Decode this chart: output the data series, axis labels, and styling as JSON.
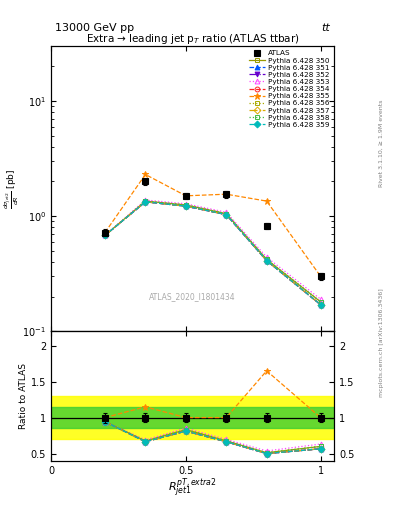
{
  "title_top": "13000 GeV pp",
  "title_top_right": "tt",
  "plot_title": "Extra → leading jet p$_T$ ratio (ATLAS ttbar)",
  "xlabel": "$R_{jet1}^{pT,extra2}$",
  "ylabel_main": "$\\frac{d\\sigma_{jet2}}{dR}$ [pb]",
  "ylabel_ratio": "Ratio to ATLAS",
  "watermark": "ATLAS_2020_I1801434",
  "right_label": "Rivet 3.1.10, ≥ 1.9M events",
  "right_label2": "mcplots.cern.ch [arXiv:1306.3436]",
  "xdata": [
    0.2,
    0.35,
    0.5,
    0.65,
    0.8,
    1.0
  ],
  "atlas_y": [
    0.72,
    2.0,
    1.5,
    1.55,
    0.82,
    0.3
  ],
  "atlas_yerr": [
    0.05,
    0.12,
    0.1,
    0.1,
    0.05,
    0.02
  ],
  "series": [
    {
      "label": "Pythia 6.428 350",
      "color": "#999900",
      "linestyle": "-",
      "marker": "s",
      "fillstyle": "none",
      "y": [
        0.68,
        1.35,
        1.25,
        1.05,
        0.42,
        0.18
      ],
      "ratio": [
        0.944,
        0.675,
        0.833,
        0.677,
        0.512,
        0.6
      ]
    },
    {
      "label": "Pythia 6.428 351",
      "color": "#0055ff",
      "linestyle": "--",
      "marker": "^",
      "fillstyle": "full",
      "y": [
        0.68,
        1.33,
        1.22,
        1.03,
        0.41,
        0.17
      ],
      "ratio": [
        0.944,
        0.665,
        0.813,
        0.665,
        0.5,
        0.567
      ]
    },
    {
      "label": "Pythia 6.428 352",
      "color": "#6600cc",
      "linestyle": "-.",
      "marker": "v",
      "fillstyle": "full",
      "y": [
        0.68,
        1.33,
        1.22,
        1.03,
        0.41,
        0.17
      ],
      "ratio": [
        0.944,
        0.665,
        0.813,
        0.665,
        0.5,
        0.567
      ]
    },
    {
      "label": "Pythia 6.428 353",
      "color": "#ff44ff",
      "linestyle": ":",
      "marker": "^",
      "fillstyle": "none",
      "y": [
        0.68,
        1.38,
        1.28,
        1.08,
        0.44,
        0.19
      ],
      "ratio": [
        0.944,
        0.69,
        0.853,
        0.697,
        0.537,
        0.633
      ]
    },
    {
      "label": "Pythia 6.428 354",
      "color": "#ff2222",
      "linestyle": "--",
      "marker": "o",
      "fillstyle": "none",
      "y": [
        0.68,
        1.33,
        1.22,
        1.03,
        0.41,
        0.17
      ],
      "ratio": [
        0.944,
        0.665,
        0.813,
        0.665,
        0.5,
        0.567
      ]
    },
    {
      "label": "Pythia 6.428 355",
      "color": "#ff8800",
      "linestyle": "--",
      "marker": "*",
      "fillstyle": "full",
      "y": [
        0.72,
        2.3,
        1.5,
        1.55,
        1.35,
        0.3
      ],
      "ratio": [
        1.0,
        1.15,
        1.0,
        1.0,
        1.65,
        1.0
      ]
    },
    {
      "label": "Pythia 6.428 356",
      "color": "#aaaa00",
      "linestyle": ":",
      "marker": "s",
      "fillstyle": "none",
      "y": [
        0.68,
        1.35,
        1.25,
        1.05,
        0.42,
        0.18
      ],
      "ratio": [
        0.944,
        0.675,
        0.833,
        0.677,
        0.512,
        0.6
      ]
    },
    {
      "label": "Pythia 6.428 357",
      "color": "#ddaa00",
      "linestyle": "-.",
      "marker": "D",
      "fillstyle": "none",
      "y": [
        0.68,
        1.33,
        1.22,
        1.03,
        0.41,
        0.17
      ],
      "ratio": [
        0.944,
        0.665,
        0.813,
        0.665,
        0.5,
        0.567
      ]
    },
    {
      "label": "Pythia 6.428 358",
      "color": "#44bb44",
      "linestyle": ":",
      "marker": "s",
      "fillstyle": "none",
      "y": [
        0.68,
        1.35,
        1.25,
        1.05,
        0.42,
        0.18
      ],
      "ratio": [
        0.944,
        0.675,
        0.833,
        0.677,
        0.512,
        0.6
      ]
    },
    {
      "label": "Pythia 6.428 359",
      "color": "#00bbbb",
      "linestyle": "--",
      "marker": "D",
      "fillstyle": "full",
      "y": [
        0.68,
        1.33,
        1.22,
        1.03,
        0.41,
        0.17
      ],
      "ratio": [
        0.944,
        0.665,
        0.813,
        0.665,
        0.5,
        0.567
      ]
    }
  ],
  "ylim_main": [
    0.1,
    30
  ],
  "ylim_ratio": [
    0.4,
    2.2
  ],
  "ratio_yticks": [
    0.5,
    1.0,
    1.5,
    2.0
  ],
  "ratio_yticklabels": [
    "0.5",
    "1",
    "1.5",
    "2"
  ],
  "ratio_band_yellow": [
    0.7,
    1.3
  ],
  "ratio_band_green": [
    0.85,
    1.15
  ],
  "xmin": 0.0,
  "xmax": 1.05,
  "xticks": [
    0.0,
    0.5,
    1.0
  ]
}
